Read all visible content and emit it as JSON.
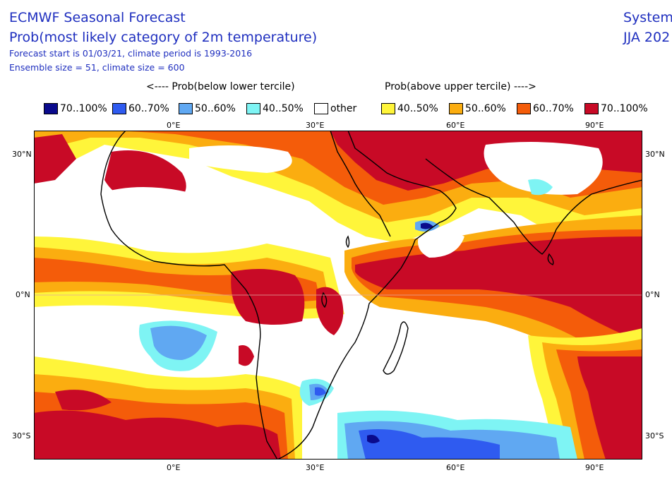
{
  "title": {
    "line1": "ECMWF Seasonal Forecast",
    "line2": "Prob(most likely category of 2m temperature)",
    "line3": "Forecast start is 01/03/21, climate period is 1993-2016",
    "line4": "Ensemble size = 51, climate size = 600",
    "right1": "System",
    "right2": "JJA 202"
  },
  "legend": {
    "header_below": "<---- Prob(below lower tercile)",
    "header_above": "Prob(above upper tercile) ---->",
    "items": [
      {
        "label": "70..100%",
        "color": "#0a0a8c"
      },
      {
        "label": "60..70%",
        "color": "#2f5bf0"
      },
      {
        "label": "50..60%",
        "color": "#60a8f2"
      },
      {
        "label": "40..50%",
        "color": "#7ef4f4"
      },
      {
        "label": "other",
        "color": "#ffffff"
      },
      {
        "label": "40..50%",
        "color": "#fff53a"
      },
      {
        "label": "50..60%",
        "color": "#fbad10"
      },
      {
        "label": "60..70%",
        "color": "#f45c0a"
      },
      {
        "label": "70..100%",
        "color": "#c80a26"
      }
    ]
  },
  "axes": {
    "x_top": [
      "0°E",
      "30°E",
      "60°E",
      "90°E"
    ],
    "x_bottom": [
      "0°E",
      "30°E",
      "60°E",
      "90°E"
    ],
    "y_left": [
      "30°N",
      "0°N",
      "30°S"
    ],
    "y_right": [
      "30°N",
      "0°N",
      "30°S"
    ]
  },
  "map": {
    "region": "Africa / Indian Ocean",
    "variable": "2m temperature tercile probability"
  }
}
